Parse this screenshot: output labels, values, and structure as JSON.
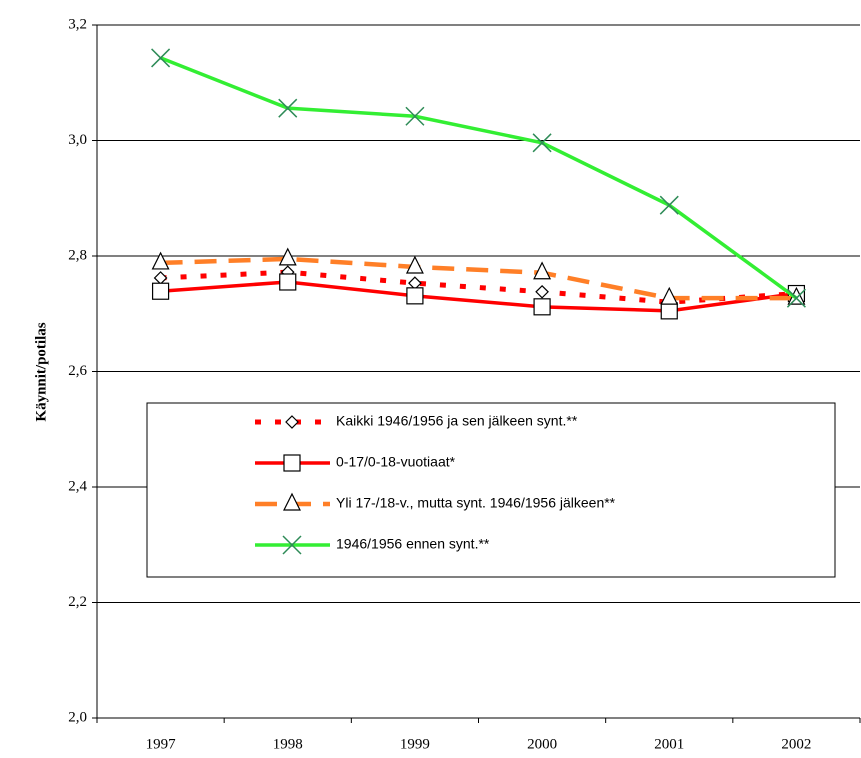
{
  "chart_data": {
    "type": "line",
    "y_label": "Käynnit/potilas",
    "categories": [
      "1997",
      "1998",
      "1999",
      "2000",
      "2001",
      "2002"
    ],
    "ylim": [
      2.0,
      3.2
    ],
    "yticks": [
      {
        "value": 2.0,
        "label": "2,0"
      },
      {
        "value": 2.2,
        "label": "2,2"
      },
      {
        "value": 2.4,
        "label": "2,4"
      },
      {
        "value": 2.6,
        "label": "2,6"
      },
      {
        "value": 2.8,
        "label": "2,8"
      },
      {
        "value": 3.0,
        "label": "3,0"
      },
      {
        "value": 3.2,
        "label": "3,2"
      }
    ],
    "grid": true,
    "series": [
      {
        "name": "Kaikki 1946/1956 ja sen jälkeen synt.**",
        "color": "#ff0000",
        "style": "dotted",
        "marker": "diamond",
        "values": [
          2.762,
          2.772,
          2.753,
          2.738,
          2.72,
          2.735
        ]
      },
      {
        "name": "0-17/0-18-vuotiaat*",
        "color": "#ff0000",
        "style": "solid",
        "marker": "square",
        "values": [
          2.739,
          2.755,
          2.731,
          2.712,
          2.705,
          2.735
        ]
      },
      {
        "name": "Yli 17-/18-v., mutta synt. 1946/1956 jälkeen**",
        "color": "#ff7f27",
        "style": "dashed",
        "marker": "triangle",
        "values": [
          2.788,
          2.795,
          2.781,
          2.771,
          2.727,
          2.727
        ]
      },
      {
        "name": "1946/1956 ennen synt.**",
        "color": "#33ee33",
        "style": "solid",
        "marker": "x",
        "values": [
          3.143,
          3.056,
          3.042,
          2.996,
          2.888,
          2.727
        ]
      }
    ]
  }
}
